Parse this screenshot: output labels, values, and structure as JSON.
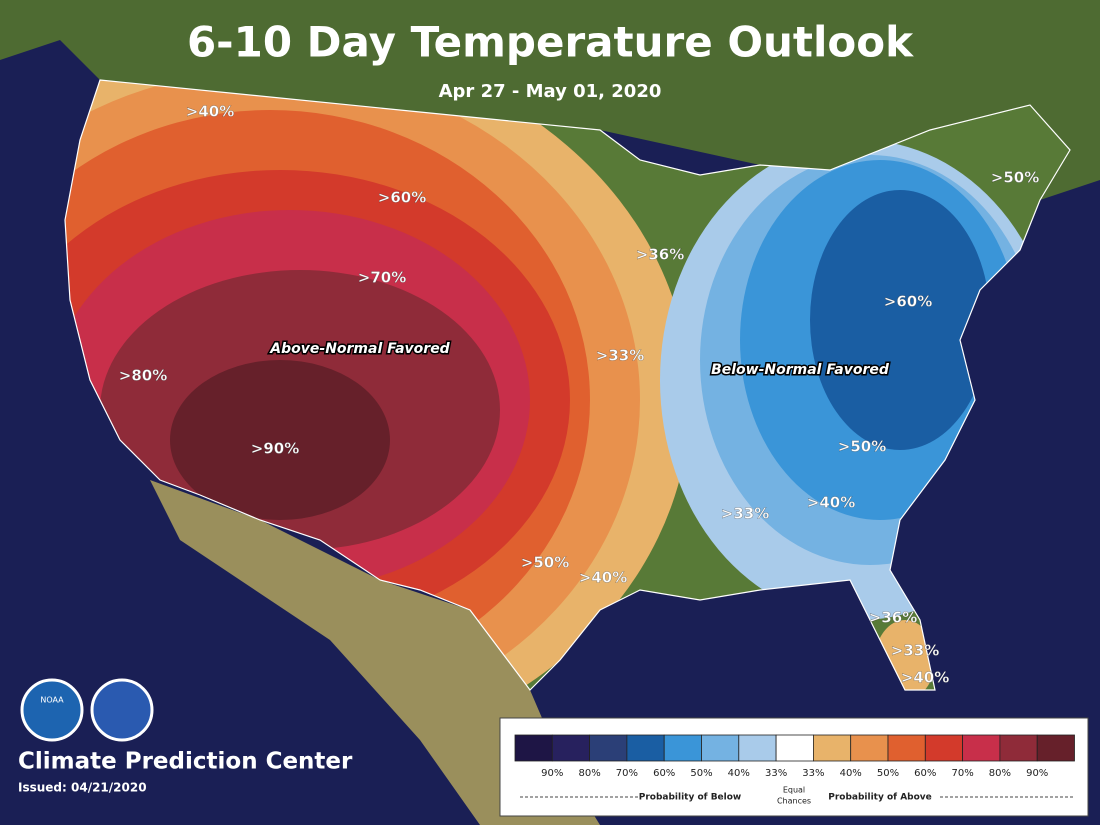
{
  "header": {
    "title": "6-10 Day Temperature Outlook",
    "subtitle": "Apr 27 - May 01, 2020"
  },
  "map_labels": [
    ">40%",
    ">60%",
    ">70%",
    "Above-Normal Favored",
    ">80%",
    ">90%",
    ">50%",
    ">40%",
    ">36%",
    ">33%",
    "Below-Normal Favored",
    ">60%",
    ">50%",
    ">50%",
    ">40%",
    ">33%",
    ">36%",
    ">33%",
    ">40%"
  ],
  "legend": {
    "labels": [
      "90%",
      "80%",
      "70%",
      "60%",
      "50%",
      "40%",
      "33%",
      "33%",
      "40%",
      "50%",
      "60%",
      "70%",
      "80%",
      "90%"
    ],
    "below": "Probability of Below",
    "equal": [
      "Equal",
      "Chances"
    ],
    "above": "Probability of Above"
  },
  "logo": "NOAA",
  "footer": {
    "org": "Climate Prediction Center",
    "issued": "Issued: 04/21/2020"
  }
}
